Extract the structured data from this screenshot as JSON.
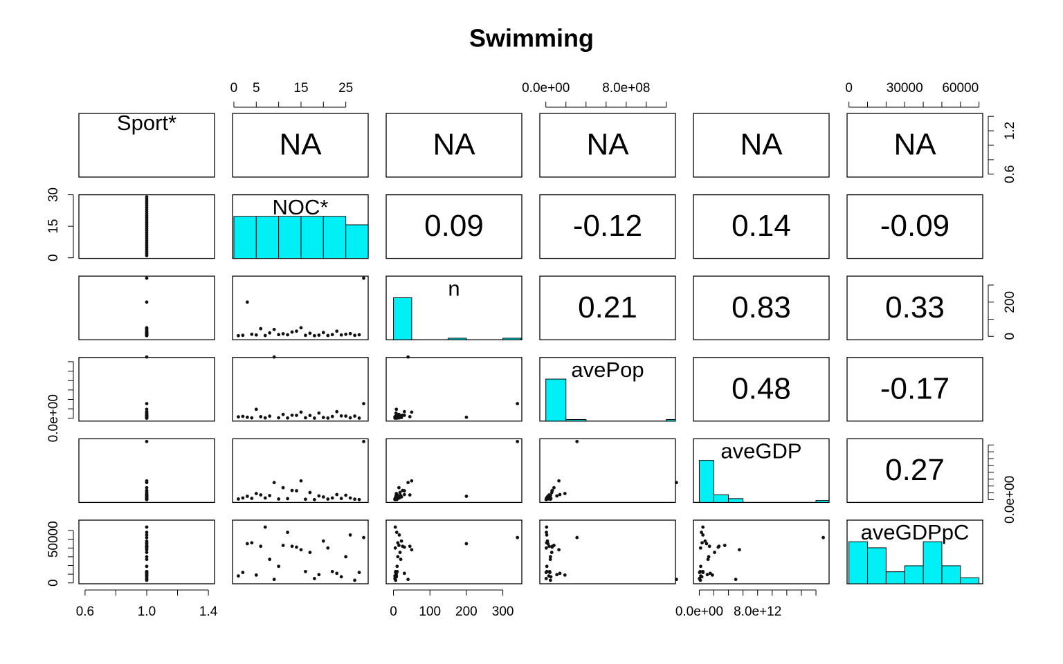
{
  "chart_data": {
    "type": "pairs",
    "title": "Swimming",
    "variables": [
      {
        "name": "Sport*",
        "lim": [
          0.56,
          1.44
        ],
        "values": [
          1,
          1,
          1,
          1,
          1,
          1,
          1,
          1,
          1,
          1,
          1,
          1,
          1,
          1,
          1,
          1,
          1,
          1,
          1,
          1,
          1,
          1,
          1,
          1,
          1,
          1,
          1,
          1,
          1
        ],
        "xticks": [
          0.6,
          {
            "value": 1,
            "label": "1.0"
          },
          1.4
        ],
        "xminor": [
          0.8,
          1.2
        ],
        "yticks": [
          0.6,
          1.2
        ],
        "yminor": [
          0.8,
          1,
          1.4
        ]
      },
      {
        "name": "NOC*",
        "lim": [
          -0.3,
          30
        ],
        "values": [
          1,
          2,
          3,
          4,
          5,
          6,
          7,
          8,
          9,
          10,
          11,
          12,
          13,
          14,
          15,
          16,
          17,
          18,
          19,
          20,
          21,
          22,
          23,
          24,
          25,
          26,
          27,
          28,
          29
        ],
        "xticks": [
          0,
          5,
          15,
          25
        ],
        "xminor": [
          10,
          20
        ],
        "yticks": [
          0,
          15,
          30
        ],
        "yminor": [],
        "hist": {
          "bins": [
            0,
            5,
            10,
            15,
            20,
            25,
            30
          ],
          "counts": [
            5,
            5,
            5,
            5,
            5,
            4
          ]
        }
      },
      {
        "name": "n",
        "lim": [
          -20,
          352
        ],
        "values": [
          4,
          6,
          200,
          12,
          8,
          45,
          5,
          20,
          40,
          10,
          15,
          9,
          25,
          30,
          50,
          6,
          18,
          4,
          7,
          22,
          5,
          10,
          30,
          8,
          12,
          16,
          6,
          9,
          340
        ],
        "xticks": [
          0,
          100,
          200,
          300
        ],
        "xminor": [],
        "yticks": [
          0,
          200
        ],
        "yminor": [
          100,
          300
        ],
        "hist": {
          "bins": [
            0,
            50,
            100,
            150,
            200,
            250,
            300,
            350
          ],
          "counts": [
            27,
            0,
            0,
            1,
            0,
            0,
            1
          ]
        }
      },
      {
        "name": "avePop",
        "lim": [
          -60000000,
          1290000000
        ],
        "values": [
          30000000,
          40000000,
          21000000,
          8300000,
          190000000,
          33000000,
          7800000,
          45000000,
          1300000000,
          10000000,
          81000000,
          5600000,
          64000000,
          62000000,
          130000000,
          10000000,
          59000000,
          3400000,
          110000000,
          16000000,
          4700000,
          38000000,
          140000000,
          50000000,
          46000000,
          9200000,
          46000000,
          3400000,
          310000000
        ],
        "xticks": [
          {
            "value": 0,
            "label": "0.0e+00"
          },
          {
            "value": 800000000,
            "label": "8.0e+08"
          }
        ],
        "xminor": [
          200000000,
          400000000,
          600000000,
          1000000000,
          1200000000
        ],
        "yticks": [
          {
            "value": 0,
            "label": "0.0e+00"
          }
        ],
        "yminor": [
          200000000,
          400000000,
          600000000,
          800000000,
          1000000000,
          1200000000
        ],
        "hist": {
          "bins": [
            0,
            200000000,
            400000000,
            600000000,
            800000000,
            1000000000,
            1200000000,
            1400000000
          ],
          "counts": [
            27,
            1,
            0,
            0,
            0,
            0,
            1
          ]
        }
      },
      {
        "name": "aveGDP",
        "lim": [
          -800000000000,
          17800000000000
        ],
        "values": [
          200000000000,
          500000000000,
          1000000000000,
          390000000000,
          1800000000000,
          1400000000000,
          500000000000,
          1200000000000,
          5000000000000,
          200000000000,
          3500000000000,
          300000000000,
          2700000000000,
          2600000000000,
          5500000000000,
          130000000000,
          2100000000000,
          18000000000,
          1100000000000,
          800000000000,
          180000000000,
          500000000000,
          1500000000000,
          350000000000,
          1300000000000,
          500000000000,
          150000000000,
          40000000000,
          17000000000000
        ],
        "xticks": [
          {
            "value": 0,
            "label": "0.0e+00"
          },
          {
            "value": 8000000000000,
            "label": "8.0e+12"
          }
        ],
        "xminor": [
          2000000000000,
          4000000000000,
          6000000000000,
          10000000000000,
          12000000000000,
          14000000000000,
          16000000000000
        ],
        "yticks": [
          {
            "value": 0,
            "label": "0.0e+00"
          }
        ],
        "yminor": [
          2000000000000,
          4000000000000,
          6000000000000,
          8000000000000,
          10000000000000,
          12000000000000,
          14000000000000,
          16000000000000
        ],
        "hist": {
          "bins": [
            0,
            2000000000000,
            4000000000000,
            6000000000000,
            8000000000000,
            10000000000000,
            12000000000000,
            14000000000000,
            16000000000000,
            18000000000000
          ],
          "counts": [
            22,
            4,
            2,
            0,
            0,
            0,
            0,
            0,
            1
          ]
        }
      },
      {
        "name": "aveGDPpC",
        "lim": [
          -1000,
          72000
        ],
        "values": [
          8000,
          12000,
          45000,
          46000,
          9000,
          42000,
          64000,
          27000,
          4000,
          19000,
          43000,
          58000,
          42000,
          41000,
          38000,
          13000,
          35000,
          5000,
          9500,
          48000,
          40000,
          13000,
          11000,
          7000,
          30000,
          55000,
          3000,
          12000,
          52000
        ],
        "xticks": [
          0,
          30000,
          60000
        ],
        "xminor": [
          10000,
          20000,
          40000,
          50000,
          70000
        ],
        "yticks": [
          0,
          50000
        ],
        "yminor": [
          10000,
          20000,
          30000,
          40000,
          60000
        ],
        "hist": {
          "bins": [
            0,
            10000,
            20000,
            30000,
            40000,
            50000,
            60000,
            70000
          ],
          "counts": [
            7,
            6,
            2,
            3,
            7,
            3,
            1
          ]
        }
      }
    ],
    "correlations": [
      [
        "NA",
        "NA",
        "NA",
        "NA",
        "NA"
      ],
      [
        0.09,
        -0.12,
        0.14,
        -0.09
      ],
      [
        0.21,
        0.83,
        0.33
      ],
      [
        0.48,
        -0.17
      ],
      [
        0.27
      ]
    ],
    "hist_color": "#00f0f5",
    "point_color": "#111111"
  }
}
